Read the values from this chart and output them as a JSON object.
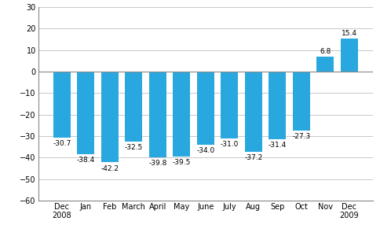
{
  "categories": [
    "Dec\n2008",
    "Jan",
    "Feb",
    "March",
    "April",
    "May",
    "June",
    "July",
    "Aug",
    "Sep",
    "Oct",
    "Nov",
    "Dec\n2009"
  ],
  "values": [
    -30.7,
    -38.4,
    -42.2,
    -32.5,
    -39.8,
    -39.5,
    -34.0,
    -31.0,
    -37.2,
    -31.4,
    -27.3,
    6.8,
    15.4
  ],
  "bar_color": "#29a8e0",
  "ylim": [
    -60,
    30
  ],
  "yticks": [
    -60,
    -50,
    -40,
    -30,
    -20,
    -10,
    0,
    10,
    20,
    30
  ],
  "background_color": "#ffffff",
  "grid_color": "#c8c8c8",
  "label_fontsize": 6.5,
  "tick_fontsize": 7.0,
  "bar_width": 0.72
}
